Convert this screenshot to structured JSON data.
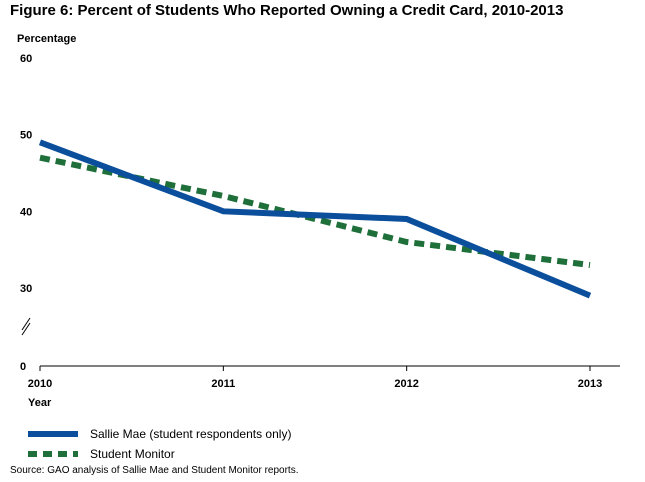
{
  "colors": {
    "sallie_mae": "#0B4F9C",
    "student_monitor": "#1F6F3A",
    "axis": "#000000"
  },
  "chart_data": {
    "type": "line",
    "title": "Figure 6: Percent of Students Who Reported Owning a Credit Card, 2010-2013",
    "ylabel": "Percentage",
    "xlabel": "Year",
    "x": [
      2010,
      2011,
      2012,
      2013
    ],
    "x_tick_labels": [
      "2010",
      "2011",
      "2012",
      "2013"
    ],
    "y_tick_labels": [
      "0",
      "30",
      "40",
      "50",
      "60"
    ],
    "y_tick_values": [
      0,
      30,
      40,
      50,
      60
    ],
    "ylim": [
      0,
      60
    ],
    "axis_break": true,
    "grid": false,
    "legend_position": "bottom-left",
    "series": [
      {
        "name": "Sallie Mae (student respondents only)",
        "values": [
          49,
          40,
          39,
          29
        ],
        "style": "solid",
        "color": "#0B4F9C"
      },
      {
        "name": "Student Monitor",
        "values": [
          47,
          42,
          36,
          33
        ],
        "style": "dashed",
        "color": "#1F6F3A"
      }
    ],
    "source": "Source: GAO analysis of Sallie Mae and Student Monitor reports."
  }
}
